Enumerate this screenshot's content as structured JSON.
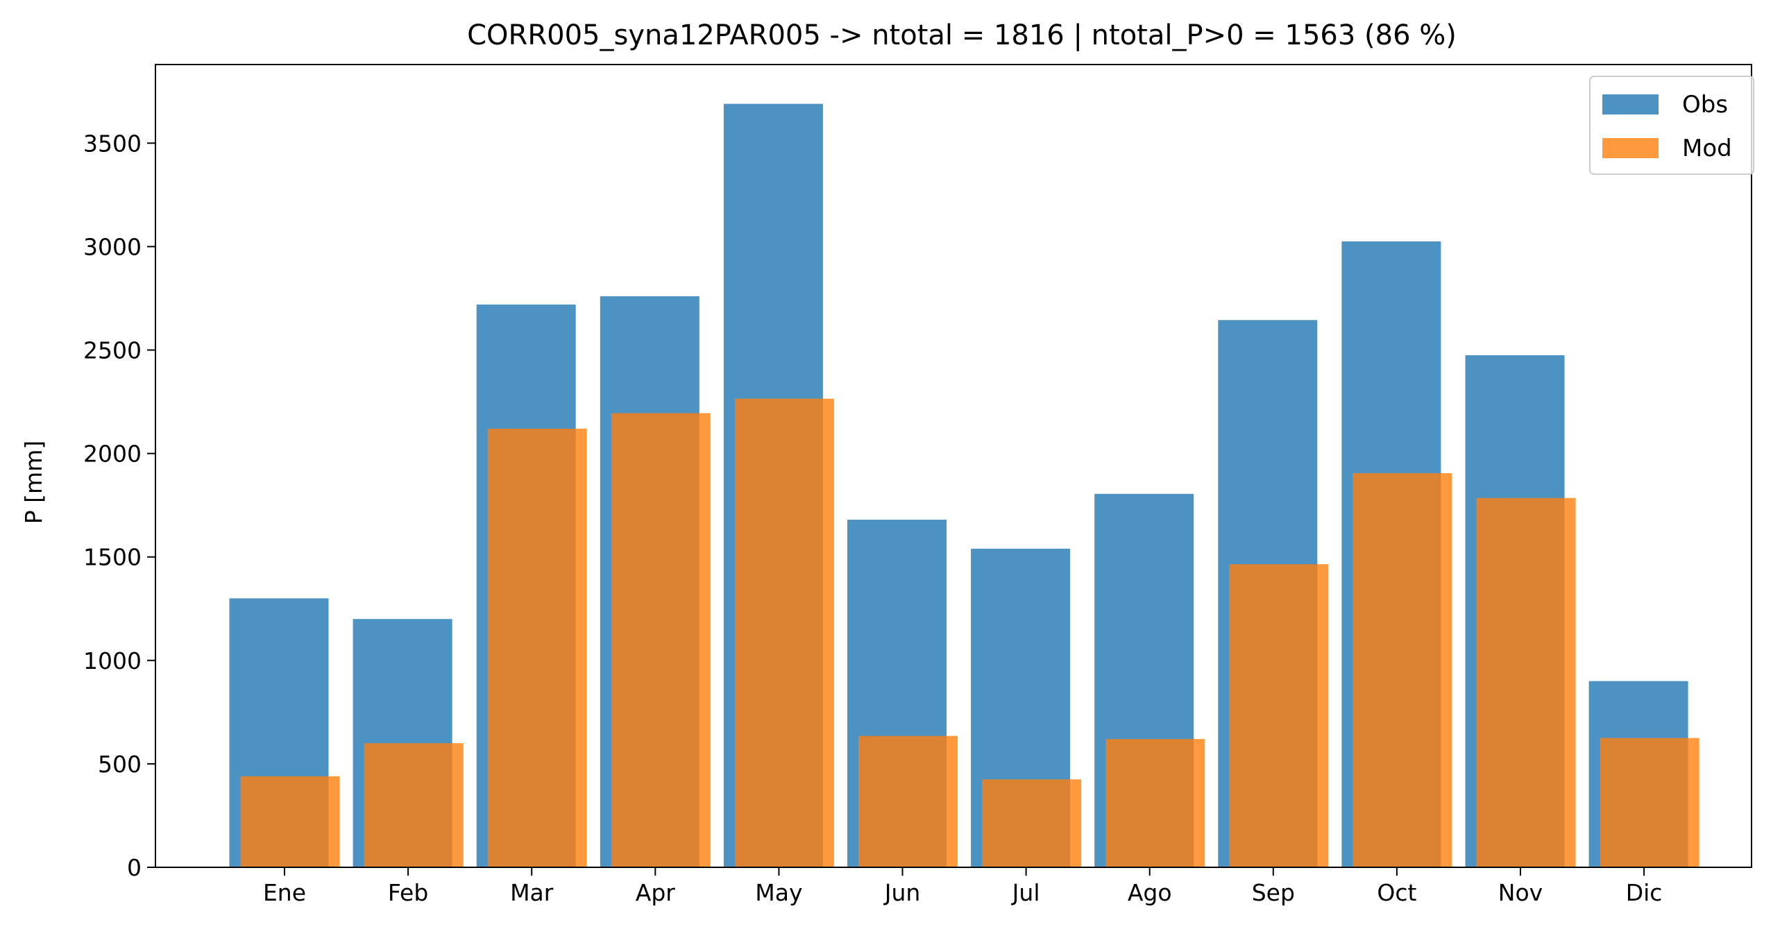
{
  "chart_data": {
    "type": "bar",
    "title": "CORR005_syna12PAR005 -> ntotal = 1816 | ntotal_P>0 = 1563 (86 %)",
    "xlabel": "",
    "ylabel": "P [mm]",
    "categories": [
      "Ene",
      "Feb",
      "Mar",
      "Apr",
      "May",
      "Jun",
      "Jul",
      "Ago",
      "Sep",
      "Oct",
      "Nov",
      "Dic"
    ],
    "yticks": [
      0,
      500,
      1000,
      1500,
      2000,
      2500,
      3000,
      3500
    ],
    "ylim": [
      0,
      3880
    ],
    "grid": false,
    "legend_position": "top-right",
    "series": [
      {
        "name": "Obs",
        "color": "#1f77b4",
        "values": [
          1300,
          1200,
          2720,
          2760,
          3690,
          1680,
          1540,
          1805,
          2645,
          3025,
          2475,
          900
        ]
      },
      {
        "name": "Mod",
        "color": "#ff7f0e",
        "values": [
          440,
          600,
          2120,
          2195,
          2265,
          635,
          425,
          620,
          1465,
          1905,
          1785,
          625
        ]
      }
    ]
  }
}
